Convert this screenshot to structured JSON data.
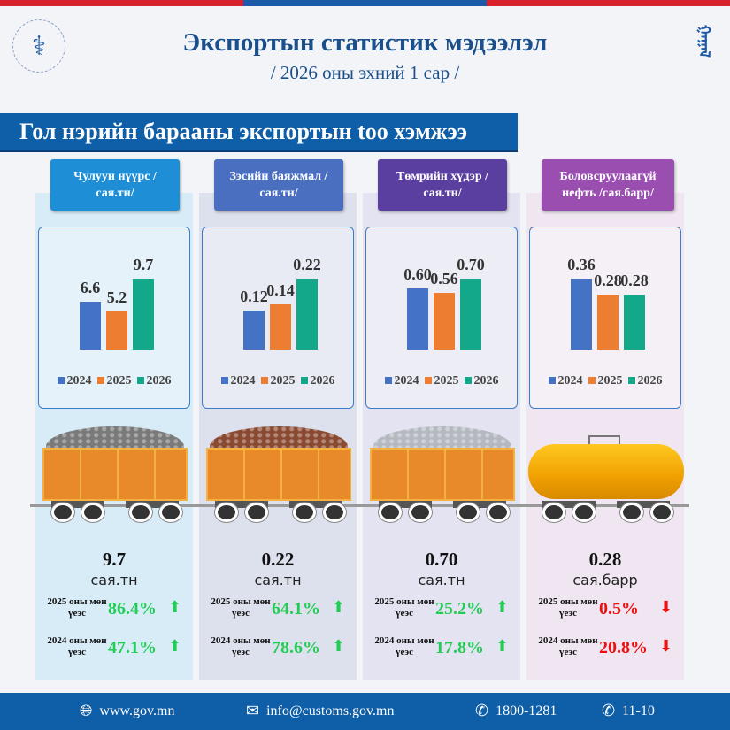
{
  "colors": {
    "red": "#d8232f",
    "blue": "#1d5aa8",
    "y2024": "#4472c4",
    "y2025": "#ed7d31",
    "y2026": "#13a88a",
    "up": "#22cc55",
    "down": "#ee1111"
  },
  "header": {
    "title": "Экспортын статистик мэдээлэл",
    "subtitle": "/ 2026 оны эхний 1 сар /"
  },
  "section_title": "Гол нэрийн барааны экспортын too хэмжээ",
  "legend": [
    "2024",
    "2025",
    "2026"
  ],
  "products": [
    {
      "label": "Чулуун нүүрс /сая.тн/",
      "cat_color": "#1e8ed6",
      "bg": "#d8ecf8",
      "pile": "#7a7a7a",
      "values": [
        6.6,
        5.2,
        9.7
      ],
      "value_labels": [
        "6.6",
        "5.2",
        "9.7"
      ],
      "total": "9.7",
      "unit": "сая.тн",
      "cmp": [
        {
          "label": "2025 оны мөн үеэс",
          "pct": "86.4%",
          "dir": "up"
        },
        {
          "label": "2024 оны мөн үеэс",
          "pct": "47.1%",
          "dir": "up"
        }
      ]
    },
    {
      "label": "Зэсийн баяжмал /сая.тн/",
      "cat_color": "#4a6fc0",
      "bg": "#dde1ee",
      "pile": "#8a4a32",
      "values": [
        0.12,
        0.14,
        0.22
      ],
      "value_labels": [
        "0.12",
        "0.14",
        "0.22"
      ],
      "total": "0.22",
      "unit": "сая.тн",
      "cmp": [
        {
          "label": "2025 оны мөн үеэс",
          "pct": "64.1%",
          "dir": "up"
        },
        {
          "label": "2024 оны мөн үеэс",
          "pct": "78.6%",
          "dir": "up"
        }
      ]
    },
    {
      "label": "Төмрийн хүдэр /сая.тн/",
      "cat_color": "#5b3fa0",
      "bg": "#e4e3f2",
      "pile": "#b4b8c0",
      "values": [
        0.6,
        0.56,
        0.7
      ],
      "value_labels": [
        "0.60",
        "0.56",
        "0.70"
      ],
      "total": "0.70",
      "unit": "сая.тн",
      "cmp": [
        {
          "label": "2025 оны мөн үеэс",
          "pct": "25.2%",
          "dir": "up"
        },
        {
          "label": "2024 оны мөн үеэс",
          "pct": "17.8%",
          "dir": "up"
        }
      ]
    },
    {
      "label": "Боловсруулаагүй нефть /сая.барр/",
      "cat_color": "#9a4fb0",
      "bg": "#f0e6f2",
      "pile": "",
      "values": [
        0.36,
        0.28,
        0.28
      ],
      "value_labels": [
        "0.36",
        "0.28",
        "0.28"
      ],
      "total": "0.28",
      "unit": "сая.барр",
      "cmp": [
        {
          "label": "2025 оны мөн үеэс",
          "pct": "0.5%",
          "dir": "down"
        },
        {
          "label": "2024 оны мөн үеэс",
          "pct": "20.8%",
          "dir": "down"
        }
      ]
    }
  ],
  "footer": {
    "web": "www.gov.mn",
    "email": "info@customs.gov.mn",
    "phone1": "1800-1281",
    "phone2": "11-10"
  }
}
